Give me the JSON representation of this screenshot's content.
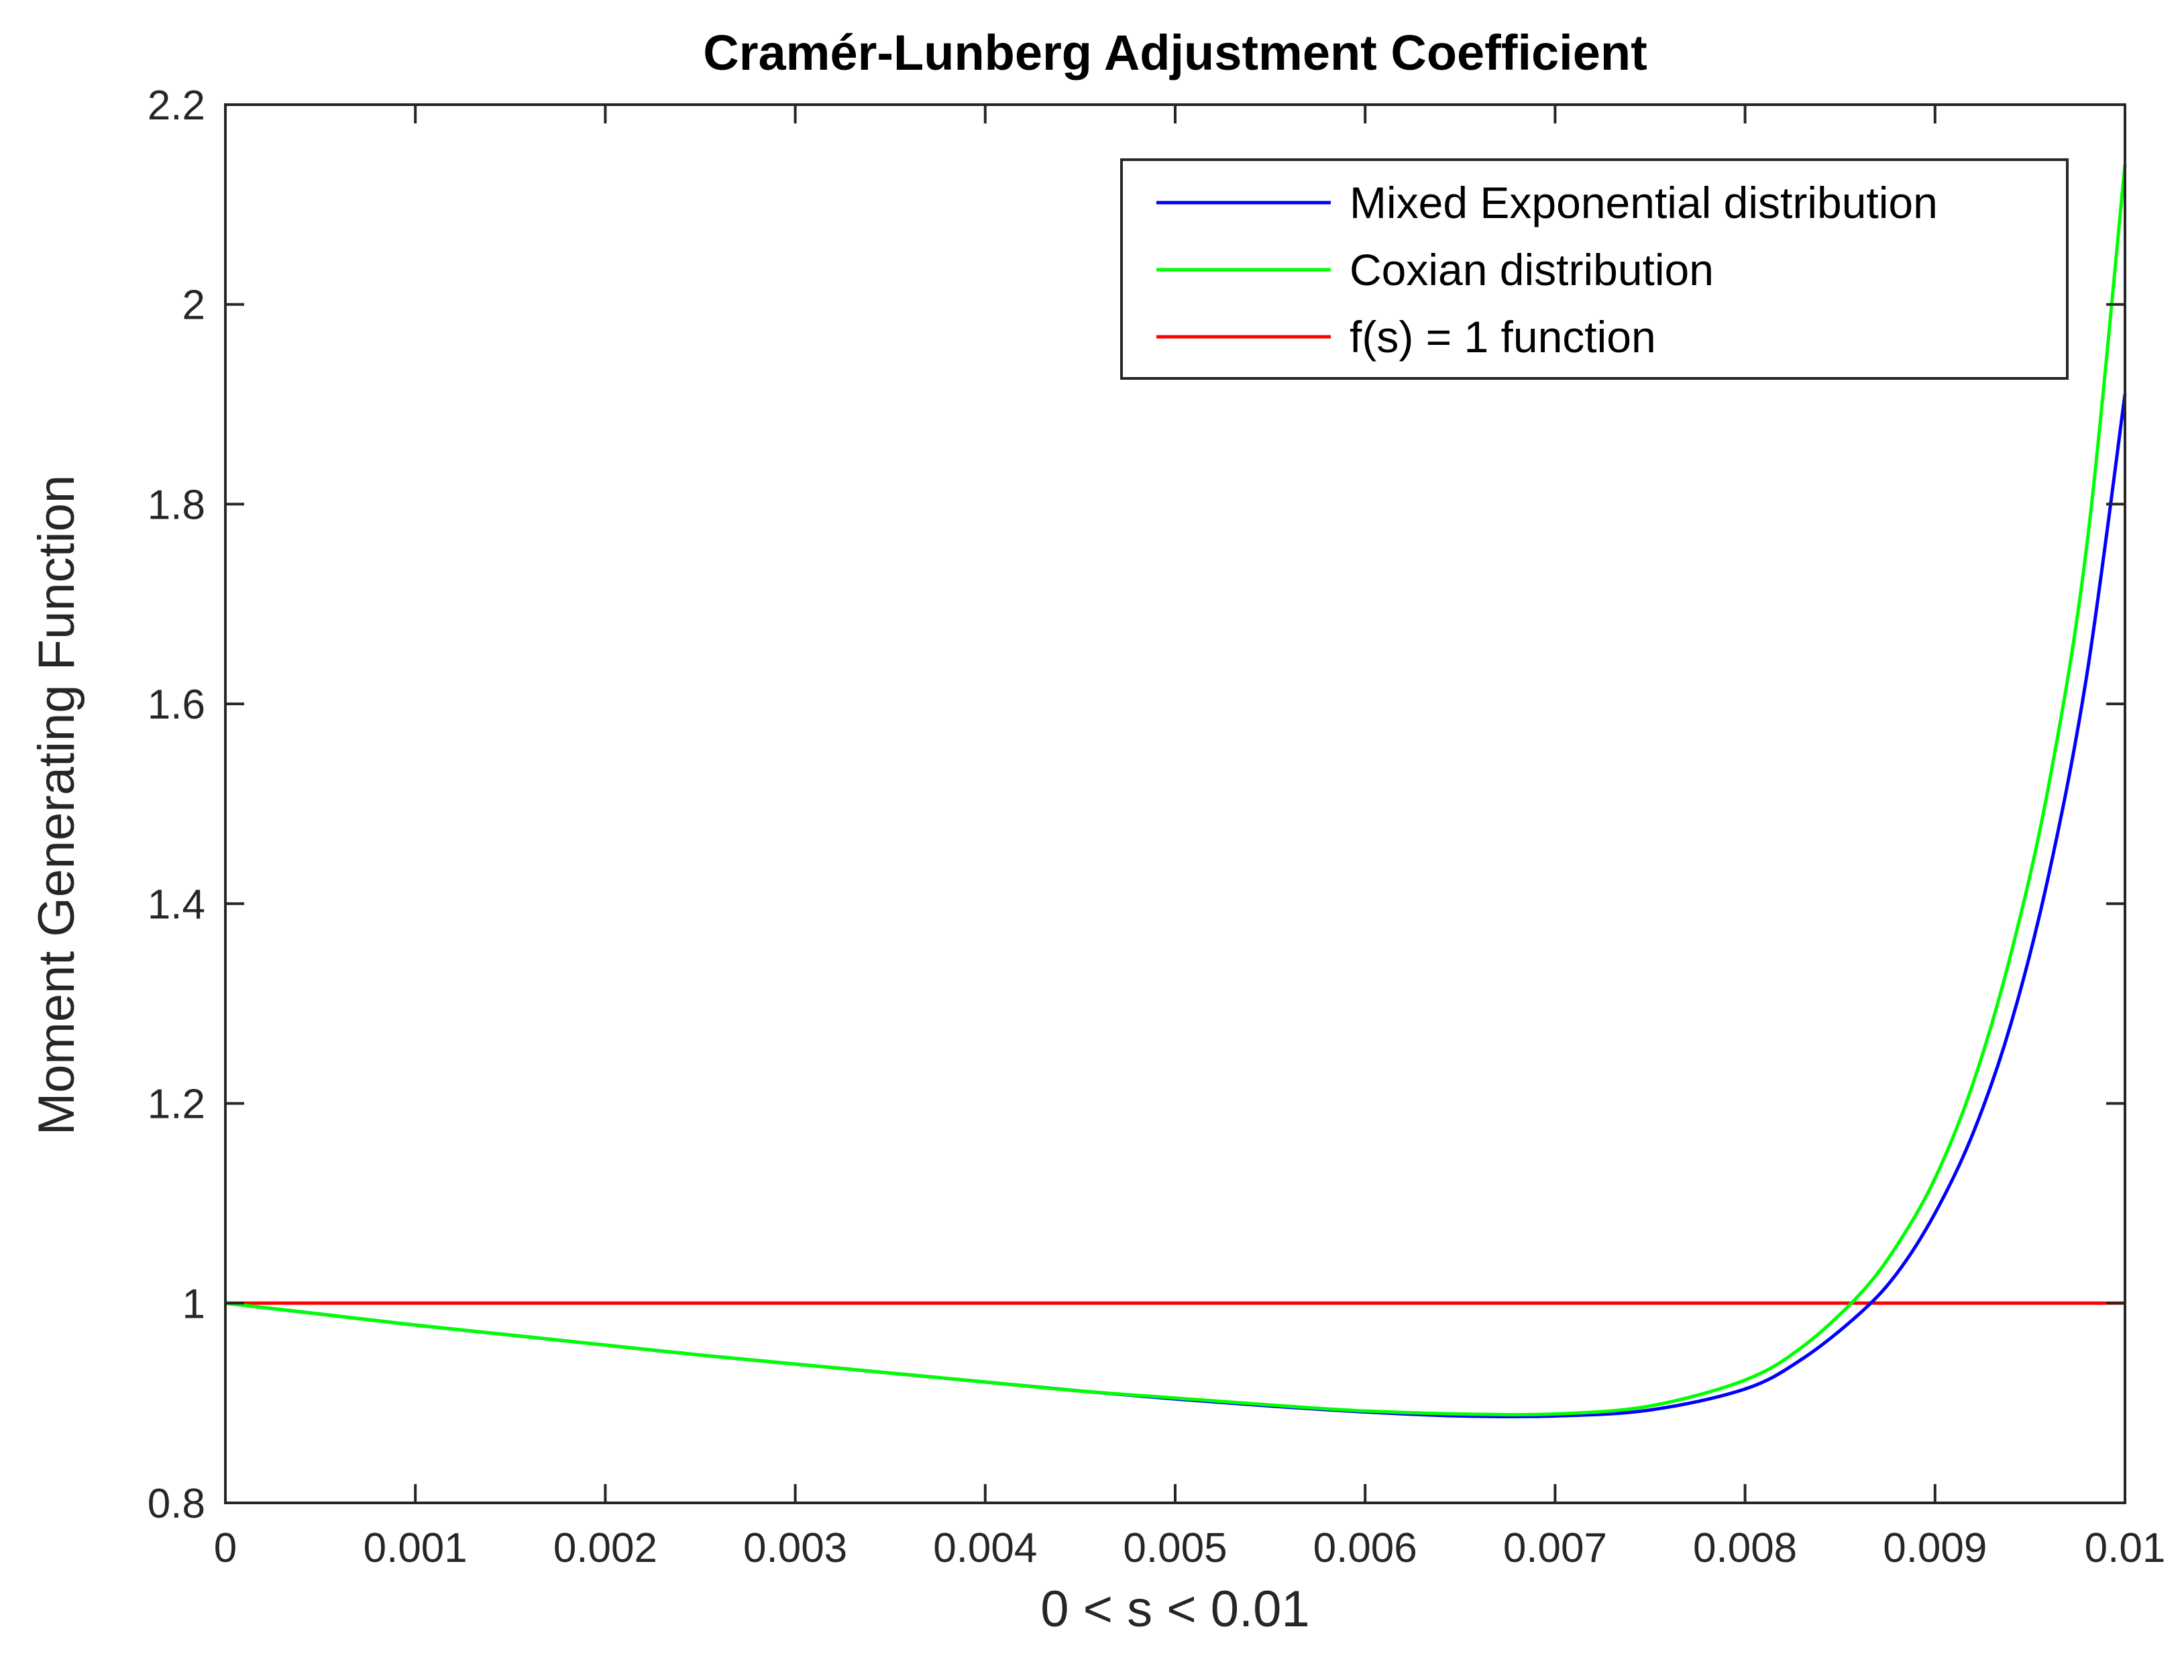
{
  "chart_data": {
    "type": "line",
    "title": "Cramér-Lunberg Adjustment Coefficient",
    "xlabel": "0 < s < 0.01",
    "ylabel": "Moment Generating Function",
    "xlim": [
      0,
      0.01
    ],
    "ylim": [
      0.8,
      2.2
    ],
    "xticks": [
      0,
      0.001,
      0.002,
      0.003,
      0.004,
      0.005,
      0.006,
      0.007,
      0.008,
      0.009,
      0.01
    ],
    "xtick_labels": [
      "0",
      "0.001",
      "0.002",
      "0.003",
      "0.004",
      "0.005",
      "0.006",
      "0.007",
      "0.008",
      "0.009",
      "0.01"
    ],
    "yticks": [
      0.8,
      1,
      1.2,
      1.4,
      1.6,
      1.8,
      2,
      2.2
    ],
    "ytick_labels": [
      "0.8",
      "1",
      "1.2",
      "1.4",
      "1.6",
      "1.8",
      "2",
      "2.2"
    ],
    "grid": false,
    "legend_position": "top-right",
    "x": [
      0,
      0.0005,
      0.001,
      0.0015,
      0.002,
      0.0025,
      0.003,
      0.0035,
      0.004,
      0.0045,
      0.005,
      0.0055,
      0.006,
      0.0065,
      0.007,
      0.0075,
      0.008,
      0.0083,
      0.0086,
      0.0088,
      0.009,
      0.0092,
      0.0094,
      0.0096,
      0.0098,
      0.01
    ],
    "series": [
      {
        "name": "Mixed Exponential distribution",
        "color": "#0000ff",
        "values": [
          1.0,
          0.989,
          0.978,
          0.968,
          0.958,
          0.948,
          0.939,
          0.93,
          0.921,
          0.912,
          0.904,
          0.897,
          0.891,
          0.887,
          0.887,
          0.893,
          0.914,
          0.944,
          0.989,
          1.03,
          1.09,
          1.17,
          1.28,
          1.43,
          1.63,
          1.91
        ]
      },
      {
        "name": "Coxian distribution",
        "color": "#00ff00",
        "values": [
          1.0,
          0.989,
          0.978,
          0.968,
          0.958,
          0.948,
          0.939,
          0.93,
          0.921,
          0.912,
          0.905,
          0.898,
          0.892,
          0.889,
          0.889,
          0.897,
          0.923,
          0.956,
          1.008,
          1.058,
          1.125,
          1.22,
          1.35,
          1.52,
          1.76,
          2.14
        ]
      },
      {
        "name": "f(s) = 1 function",
        "color": "#ff0000",
        "values": [
          1,
          1,
          1,
          1,
          1,
          1,
          1,
          1,
          1,
          1,
          1,
          1,
          1,
          1,
          1,
          1,
          1,
          1,
          1,
          1,
          1,
          1,
          1,
          1,
          1,
          1
        ]
      }
    ]
  }
}
